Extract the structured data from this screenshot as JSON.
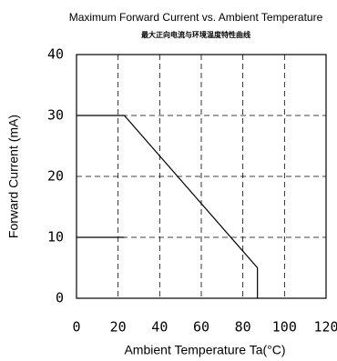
{
  "chart_data": {
    "type": "line",
    "title": "Maximum Forward Current vs. Ambient Temperature",
    "subtitle": "最大正向电流与环境温度特性曲线",
    "x_label": "Ambient Temperature Ta(°C)",
    "y_label": "Forward Current (mA)",
    "xlim": [
      0,
      120
    ],
    "xticks": [
      0,
      20,
      40,
      60,
      80,
      100,
      120
    ],
    "ylim": [
      0,
      40
    ],
    "yticks": [
      0,
      10,
      20,
      30,
      40
    ],
    "grid": true,
    "series": [
      {
        "color": "#000000",
        "x": [
          0,
          23,
          87,
          87
        ],
        "values": [
          30,
          30,
          5,
          0
        ]
      },
      {
        "color": "#000000",
        "x": [
          0,
          23
        ],
        "values": [
          10,
          10
        ]
      }
    ]
  }
}
